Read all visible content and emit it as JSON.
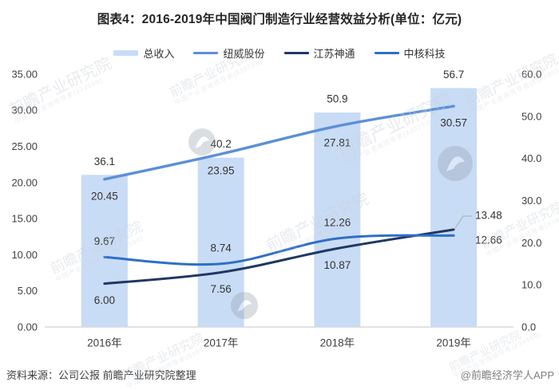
{
  "title": "图表4：2016-2019年中国阀门制造行业经营效益分析(单位：亿元)",
  "legend": {
    "items": [
      {
        "label": "总收入",
        "color": "#C9DCF5",
        "style": "thick"
      },
      {
        "label": "纽威股份",
        "color": "#5B8FD9",
        "style": "thin"
      },
      {
        "label": "江苏神通",
        "color": "#1F3864",
        "style": "thin"
      },
      {
        "label": "中核科技",
        "color": "#2E6FC8",
        "style": "thin"
      }
    ]
  },
  "chart_data": {
    "type": "combo-bar-line",
    "title": "图表4：2016-2019年中国阀门制造行业经营效益分析(单位：亿元)",
    "categories": [
      "2016年",
      "2017年",
      "2018年",
      "2019年"
    ],
    "series": [
      {
        "key": "total-revenue",
        "name": "总收入",
        "type": "bar",
        "axis": "right",
        "color": "#C9DCF5",
        "values": [
          36.1,
          40.2,
          50.9,
          56.7
        ],
        "labels": [
          "36.1",
          "40.2",
          "50.9",
          "56.7"
        ]
      },
      {
        "key": "newway",
        "name": "纽威股份",
        "type": "line",
        "axis": "left",
        "color": "#5B8FD9",
        "values": [
          20.45,
          23.95,
          27.81,
          30.57
        ],
        "labels": [
          "20.45",
          "23.95",
          "27.81",
          "30.57"
        ]
      },
      {
        "key": "jiangsu-shentong",
        "name": "江苏神通",
        "type": "line",
        "axis": "left",
        "color": "#1F3864",
        "values": [
          6.0,
          7.56,
          10.87,
          13.48
        ],
        "labels": [
          "6.00",
          "7.56",
          "10.87",
          "13.48"
        ]
      },
      {
        "key": "cnnc-tech",
        "name": "中核科技",
        "type": "line",
        "axis": "left",
        "color": "#2E6FC8",
        "values": [
          9.67,
          8.74,
          12.26,
          12.66
        ],
        "labels": [
          "9.67",
          "8.74",
          "12.26",
          "12.66"
        ]
      }
    ],
    "left_axis": {
      "range": [
        0,
        35
      ],
      "ticks": [
        "35.00",
        "30.00",
        "25.00",
        "20.00",
        "15.00",
        "10.00",
        "5.00",
        "0.00"
      ]
    },
    "right_axis": {
      "range": [
        0,
        60
      ],
      "ticks": [
        "60.0",
        "50.0",
        "40.0",
        "30.0",
        "20.0",
        "10.0",
        "0.0"
      ]
    },
    "grid": false,
    "legend_position": "top"
  },
  "watermark": {
    "text": "前瞻产业研究院",
    "subtext": "中国产业咨询领导者(839599)"
  },
  "footer": {
    "source": "资料来源：公司公报 前瞻产业研究院整理",
    "credit": "@前瞻经济学人APP"
  },
  "colors": {
    "axis_line": "#D9D9D9",
    "axis_text": "#404040",
    "data_label": "#333333",
    "leader_line": "#ABABAB",
    "logo_mark": "#8E9BAB"
  }
}
